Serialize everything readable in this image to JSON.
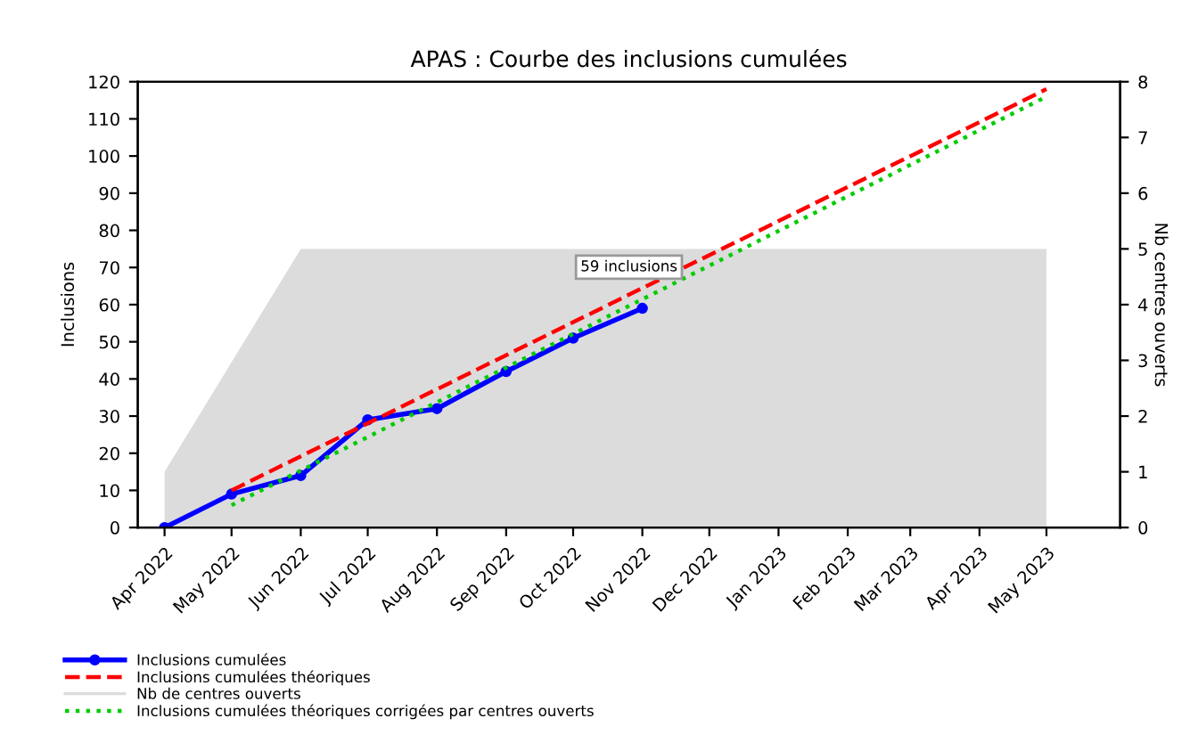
{
  "chart_data": {
    "type": "line",
    "title": "APAS : Courbe des inclusions cumulées",
    "ylabel": "Inclusions",
    "y2label": "Nb centres ouverts",
    "xlim": [
      "2022-03-20",
      "2023-06-03"
    ],
    "xticks": [
      {
        "value": "2022-04-01",
        "label": "Apr 2022"
      },
      {
        "value": "2022-05-01",
        "label": "May 2022"
      },
      {
        "value": "2022-06-01",
        "label": "Jun 2022"
      },
      {
        "value": "2022-07-01",
        "label": "Jul 2022"
      },
      {
        "value": "2022-08-01",
        "label": "Aug 2022"
      },
      {
        "value": "2022-09-01",
        "label": "Sep 2022"
      },
      {
        "value": "2022-10-01",
        "label": "Oct 2022"
      },
      {
        "value": "2022-11-01",
        "label": "Nov 2022"
      },
      {
        "value": "2022-12-01",
        "label": "Dec 2022"
      },
      {
        "value": "2023-01-01",
        "label": "Jan 2023"
      },
      {
        "value": "2023-02-01",
        "label": "Feb 2023"
      },
      {
        "value": "2023-03-01",
        "label": "Mar 2023"
      },
      {
        "value": "2023-04-01",
        "label": "Apr 2023"
      },
      {
        "value": "2023-05-01",
        "label": "May 2023"
      }
    ],
    "ylim": [
      0,
      120
    ],
    "yticks": [
      0,
      10,
      20,
      30,
      40,
      50,
      60,
      70,
      80,
      90,
      100,
      110,
      120
    ],
    "y2lim": [
      0,
      8
    ],
    "y2ticks": [
      0,
      1,
      2,
      3,
      4,
      5,
      6,
      7,
      8
    ],
    "series": [
      {
        "name": "Inclusions cumulées",
        "color": "#0000ff",
        "line_style": "solid",
        "marker": "circle",
        "x": [
          "2022-04-01",
          "2022-05-01",
          "2022-06-01",
          "2022-07-01",
          "2022-08-01",
          "2022-09-01",
          "2022-10-01",
          "2022-11-01"
        ],
        "values": [
          0,
          9,
          14,
          29,
          32,
          42,
          51,
          59
        ]
      },
      {
        "name": "Inclusions cumulées théoriques",
        "color": "#ff0000",
        "line_style": "dashed",
        "marker": "none",
        "x": [
          "2022-05-01",
          "2023-05-01"
        ],
        "values": [
          10,
          118
        ]
      },
      {
        "name": "Nb de centres ouverts",
        "type": "area",
        "axis": "y2",
        "color": "#dcdcdc",
        "x": [
          "2022-04-01",
          "2022-06-01",
          "2023-05-01"
        ],
        "values": [
          1,
          5,
          5
        ]
      },
      {
        "name": "Inclusions cumulées théoriques corrigées par centres ouverts",
        "color": "#00cc00",
        "line_style": "dotted",
        "marker": "none",
        "x": [
          "2022-05-01",
          "2023-05-01"
        ],
        "values": [
          6,
          116
        ]
      }
    ],
    "annotations": [
      {
        "text": "59 inclusions",
        "x": "2022-11-01",
        "y": 59
      }
    ],
    "legend": "bottom",
    "grid": false
  }
}
